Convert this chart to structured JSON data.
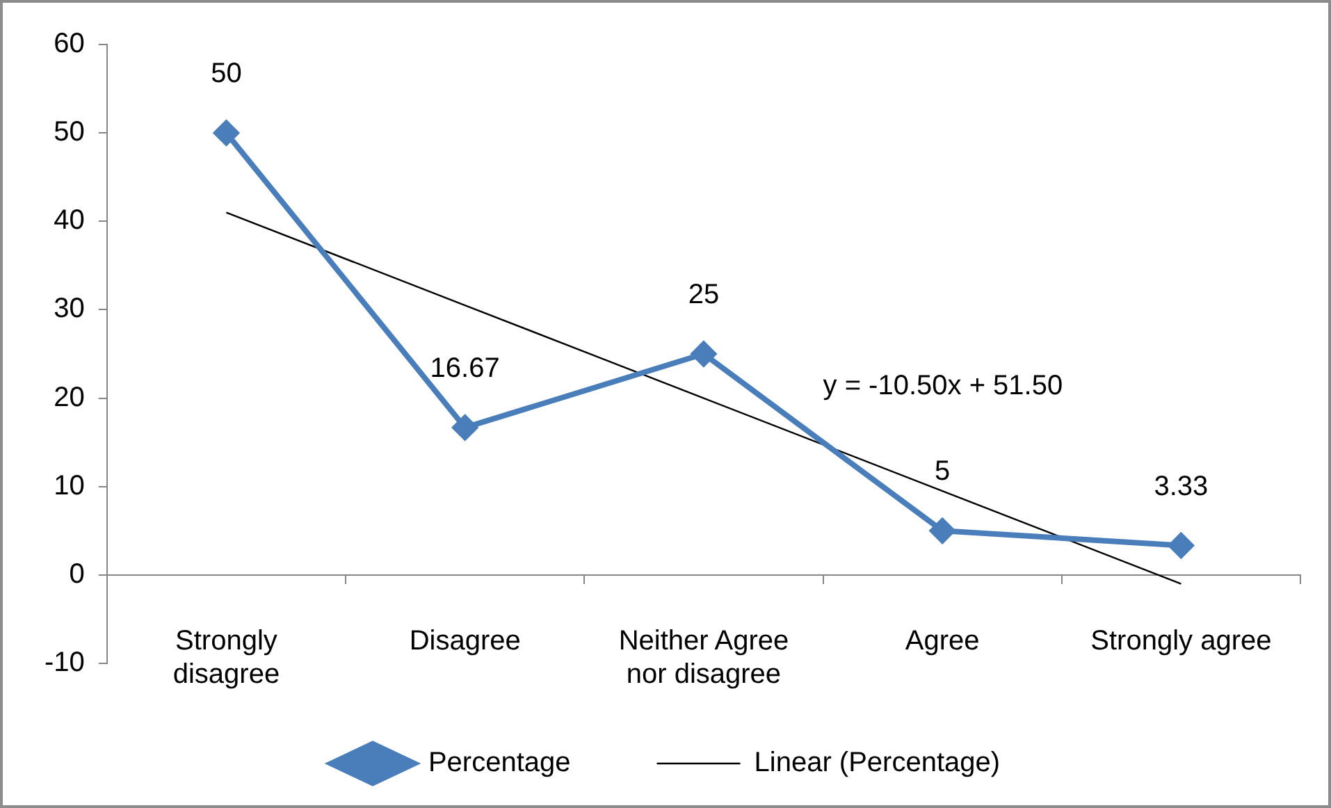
{
  "chart_data": {
    "type": "line",
    "categories": [
      "Strongly disagree",
      "Disagree",
      "Neither Agree nor disagree",
      "Agree",
      "Strongly agree"
    ],
    "series": [
      {
        "name": "Percentage",
        "color": "#4a7ebb",
        "marker": "diamond",
        "values": [
          50,
          16.67,
          25,
          5,
          3.33
        ],
        "value_labels": [
          "50",
          "16.67",
          "25",
          "5",
          "3.33"
        ]
      },
      {
        "name": "Linear (Percentage)",
        "color": "#000000",
        "marker": "none",
        "values": [
          41,
          30.5,
          20,
          9.5,
          -1
        ]
      }
    ],
    "ylim": [
      -10,
      60
    ],
    "yticks": [
      -10,
      0,
      10,
      20,
      30,
      40,
      50,
      60
    ],
    "grid": false,
    "legend": "bottom",
    "annotations": [
      "y = -10.50x + 51.50"
    ]
  }
}
